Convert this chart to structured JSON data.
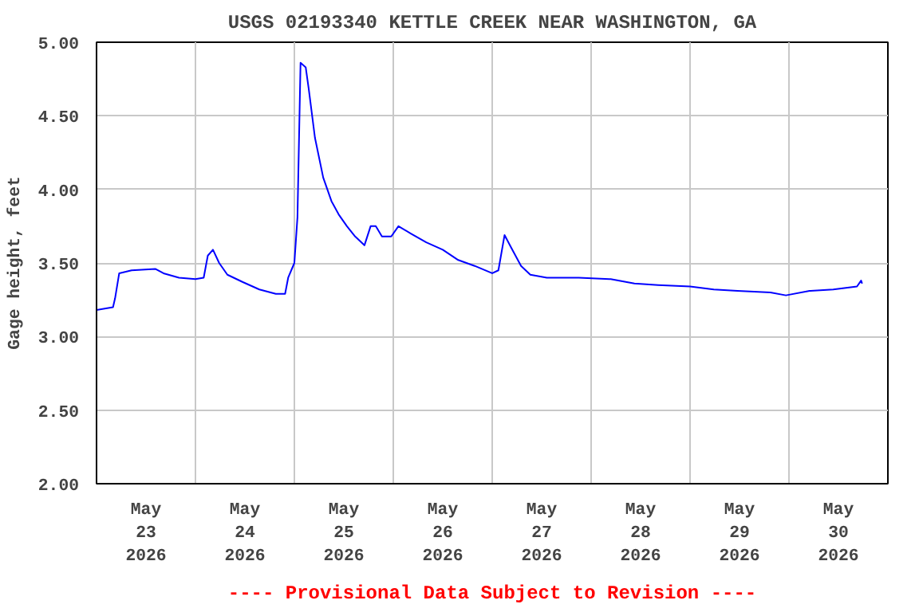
{
  "chart_data": {
    "type": "line",
    "title": "USGS 02193340 KETTLE CREEK NEAR WASHINGTON, GA",
    "ylabel": "Gage height, feet",
    "annotations": [
      "---- Provisional Data Subject to Revision ----"
    ],
    "x": [
      "2026-05-23T00:00",
      "2026-05-23T04:00",
      "2026-05-23T04:30",
      "2026-05-23T05:30",
      "2026-05-23T08:30",
      "2026-05-23T14:15",
      "2026-05-23T16:15",
      "2026-05-23T20:00",
      "2026-05-24T00:00",
      "2026-05-24T02:00",
      "2026-05-24T03:00",
      "2026-05-24T04:15",
      "2026-05-24T05:45",
      "2026-05-24T07:45",
      "2026-05-24T11:30",
      "2026-05-24T15:30",
      "2026-05-24T19:30",
      "2026-05-24T21:45",
      "2026-05-24T22:30",
      "2026-05-25T00:00",
      "2026-05-25T00:45",
      "2026-05-25T01:30",
      "2026-05-25T02:45",
      "2026-05-25T03:30",
      "2026-05-25T05:00",
      "2026-05-25T07:00",
      "2026-05-25T09:00",
      "2026-05-25T10:45",
      "2026-05-25T12:45",
      "2026-05-25T14:45",
      "2026-05-25T17:00",
      "2026-05-25T18:30",
      "2026-05-25T19:45",
      "2026-05-25T21:15",
      "2026-05-25T23:30",
      "2026-05-26T01:15",
      "2026-05-26T04:15",
      "2026-05-26T08:00",
      "2026-05-26T12:00",
      "2026-05-26T15:45",
      "2026-05-26T19:45",
      "2026-05-27T00:00",
      "2026-05-27T01:30",
      "2026-05-27T03:00",
      "2026-05-27T04:30",
      "2026-05-27T07:00",
      "2026-05-27T09:15",
      "2026-05-27T13:15",
      "2026-05-27T21:00",
      "2026-05-28T04:45",
      "2026-05-28T10:30",
      "2026-05-28T16:15",
      "2026-05-29T00:00",
      "2026-05-29T05:45",
      "2026-05-29T11:30",
      "2026-05-29T19:30",
      "2026-05-29T23:15",
      "2026-05-30T05:00",
      "2026-05-30T10:45",
      "2026-05-30T16:30",
      "2026-05-30T17:30",
      "2026-05-30T17:45"
    ],
    "series": [
      {
        "color": "#0000ff",
        "values": [
          3.18,
          3.2,
          3.26,
          3.43,
          3.45,
          3.46,
          3.43,
          3.4,
          3.39,
          3.4,
          3.55,
          3.59,
          3.5,
          3.42,
          3.37,
          3.32,
          3.29,
          3.29,
          3.4,
          3.5,
          3.81,
          4.86,
          4.83,
          4.68,
          4.35,
          4.08,
          3.92,
          3.83,
          3.75,
          3.68,
          3.62,
          3.75,
          3.75,
          3.68,
          3.68,
          3.75,
          3.7,
          3.64,
          3.59,
          3.52,
          3.48,
          3.43,
          3.45,
          3.69,
          3.61,
          3.48,
          3.42,
          3.4,
          3.4,
          3.39,
          3.36,
          3.35,
          3.34,
          3.32,
          3.31,
          3.3,
          3.28,
          3.31,
          3.32,
          3.34,
          3.38,
          3.36
        ]
      }
    ],
    "xlim": [
      "2026-05-23T00:00",
      "2026-05-31T00:00"
    ],
    "xticks": [
      {
        "value": "2026-05-23T12:00",
        "label": "May\n23\n2026"
      },
      {
        "value": "2026-05-24T12:00",
        "label": "May\n24\n2026"
      },
      {
        "value": "2026-05-25T12:00",
        "label": "May\n25\n2026"
      },
      {
        "value": "2026-05-26T12:00",
        "label": "May\n26\n2026"
      },
      {
        "value": "2026-05-27T12:00",
        "label": "May\n27\n2026"
      },
      {
        "value": "2026-05-28T12:00",
        "label": "May\n28\n2026"
      },
      {
        "value": "2026-05-29T12:00",
        "label": "May\n29\n2026"
      },
      {
        "value": "2026-05-30T12:00",
        "label": "May\n30\n2026"
      },
      {
        "value": "2026-05-24T00:00",
        "label": null
      },
      {
        "value": "2026-05-25T00:00",
        "label": null
      },
      {
        "value": "2026-05-26T00:00",
        "label": null
      },
      {
        "value": "2026-05-27T00:00",
        "label": null
      },
      {
        "value": "2026-05-28T00:00",
        "label": null
      },
      {
        "value": "2026-05-29T00:00",
        "label": null
      },
      {
        "value": "2026-05-30T00:00",
        "label": null
      }
    ],
    "ylim": [
      2.0,
      5.0
    ],
    "yticks": [
      {
        "value": 2.0,
        "label": "2.00"
      },
      {
        "value": 2.5,
        "label": "2.50"
      },
      {
        "value": 3.0,
        "label": "3.00"
      },
      {
        "value": 3.5,
        "label": "3.50"
      },
      {
        "value": 4.0,
        "label": "4.00"
      },
      {
        "value": 4.5,
        "label": "4.50"
      },
      {
        "value": 5.0,
        "label": "5.00"
      }
    ],
    "grid": true
  }
}
